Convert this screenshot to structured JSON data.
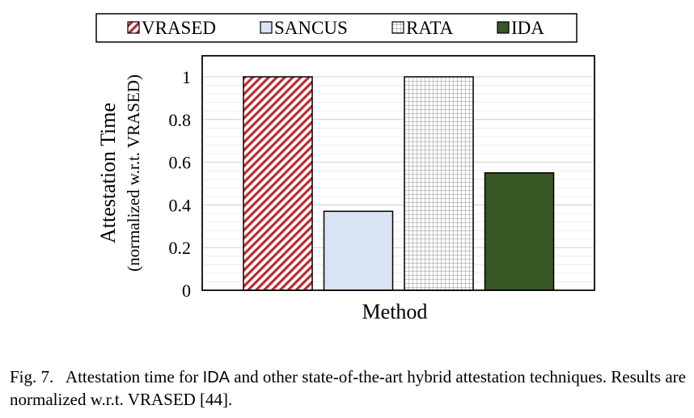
{
  "chart_data": {
    "type": "bar",
    "categories": [
      "VRASED",
      "SANCUS",
      "RATA",
      "IDA"
    ],
    "values": [
      1.0,
      0.37,
      1.0,
      0.55
    ],
    "series": [
      {
        "name": "VRASED",
        "value": 1.0,
        "color": "#c0282e",
        "pattern": "diagonal-hatch"
      },
      {
        "name": "SANCUS",
        "value": 0.37,
        "color": "#dae3f3",
        "pattern": "solid"
      },
      {
        "name": "RATA",
        "value": 1.0,
        "color": "#9a9a9a",
        "pattern": "grid"
      },
      {
        "name": "IDA",
        "value": 0.55,
        "color": "#385723",
        "pattern": "solid"
      }
    ],
    "xlabel": "Method",
    "ylabel": "Attestation Time",
    "ylabel_sub": "(normalized w.r.t. VRASED)",
    "ylim": [
      0,
      1
    ],
    "yticks": [
      "0",
      "0.2",
      "0.4",
      "0.6",
      "0.8",
      "1"
    ],
    "grid": true,
    "legend_position": "top"
  },
  "caption": {
    "prefix": "Fig. 7.",
    "text_before": "Attestation time for ",
    "ida": "IDA",
    "text_after": " and other state-of-the-art hybrid attestation techniques. Results are normalized w.r.t. VRASED [44]."
  }
}
